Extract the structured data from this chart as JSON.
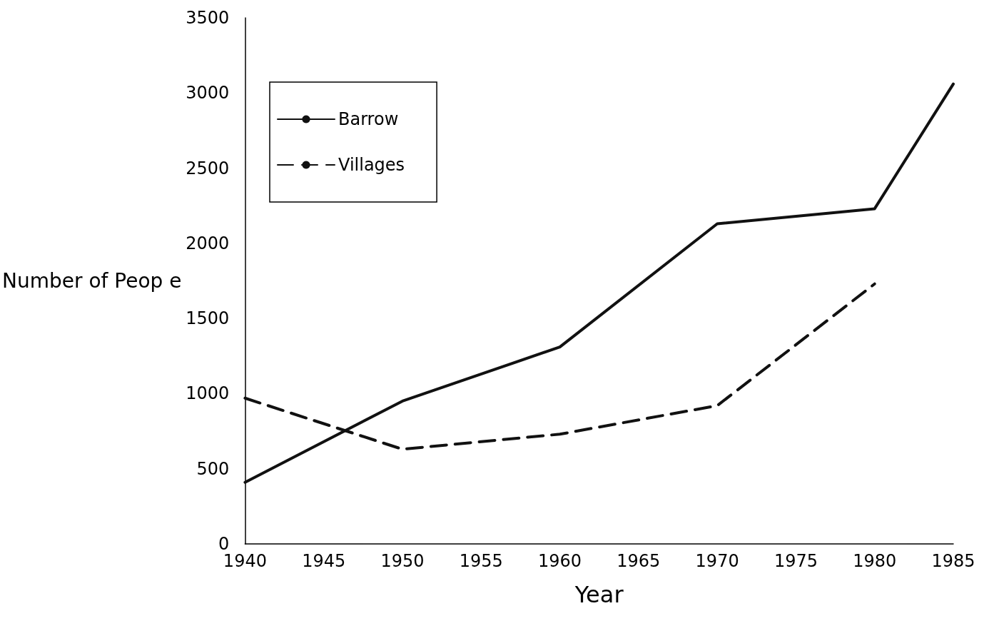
{
  "chart_data": {
    "type": "line",
    "xlabel": "Year",
    "ylabel": "Number of Peop e",
    "x": [
      1940,
      1950,
      1960,
      1970,
      1980,
      1985
    ],
    "series": [
      {
        "name": "Barrow",
        "color": "#111111",
        "line_style": "solid",
        "values": [
          410,
          950,
          1310,
          2130,
          2230,
          3060
        ]
      },
      {
        "name": "Villages",
        "color": "#111111",
        "line_style": "dashed",
        "values": [
          970,
          630,
          730,
          920,
          1730,
          null
        ]
      }
    ],
    "xlim": [
      1940,
      1985
    ],
    "xticks": [
      1940,
      1945,
      1950,
      1955,
      1960,
      1965,
      1970,
      1975,
      1980,
      1985
    ],
    "ylim": [
      0,
      3500
    ],
    "yticks": [
      0,
      500,
      1000,
      1500,
      2000,
      2500,
      3000,
      3500
    ],
    "grid": false,
    "legend": "top left",
    "marker": "none"
  }
}
